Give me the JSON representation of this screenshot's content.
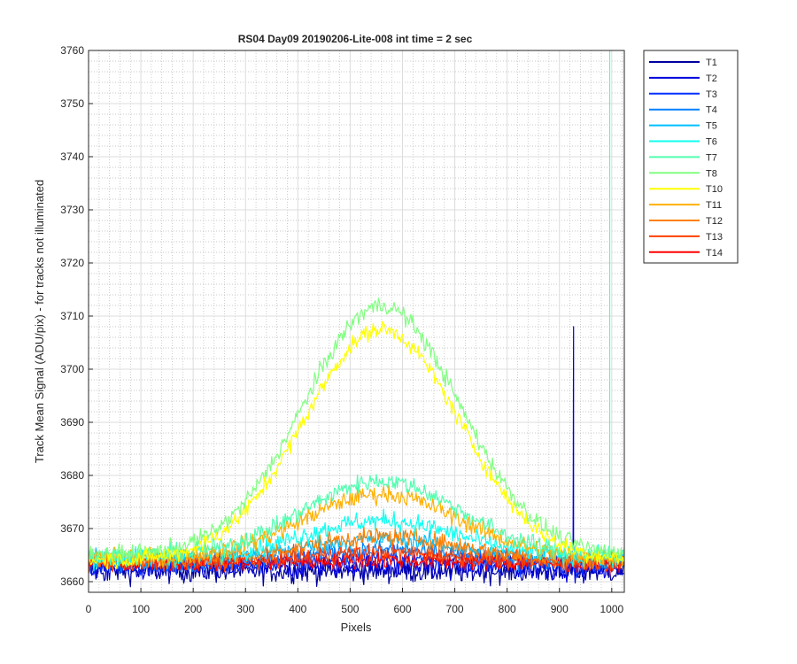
{
  "chart_data": {
    "type": "line",
    "title": "RS04 Day09 20190206-Lite-008 int time = 2 sec",
    "xlabel": "Pixels",
    "ylabel": "Track Mean Signal (ADU/pix) - for tracks not illuminated",
    "xlim": [
      0,
      1024
    ],
    "ylim": [
      3658,
      3760
    ],
    "xticks": [
      0,
      100,
      200,
      300,
      400,
      500,
      600,
      700,
      800,
      900,
      1000
    ],
    "yticks": [
      3660,
      3670,
      3680,
      3690,
      3700,
      3710,
      3720,
      3730,
      3740,
      3750,
      3760
    ],
    "grid": true,
    "minor_grid": true,
    "legend_position": "outside-top-right",
    "series": [
      {
        "name": "T1",
        "color": "#00009f",
        "base": 3662.0,
        "peak": 0.0,
        "noise": 1.6
      },
      {
        "name": "T2",
        "color": "#0000df",
        "base": 3662.5,
        "peak": 0.5,
        "noise": 1.6,
        "spike": {
          "x": 927,
          "y": 3708
        }
      },
      {
        "name": "T3",
        "color": "#0030ff",
        "base": 3663.0,
        "peak": 1.5,
        "noise": 1.3
      },
      {
        "name": "T4",
        "color": "#0080ff",
        "base": 3663.5,
        "peak": 2.5,
        "noise": 1.2
      },
      {
        "name": "T5",
        "color": "#00c0ff",
        "base": 3664.0,
        "peak": 4.0,
        "noise": 1.2
      },
      {
        "name": "T6",
        "color": "#10ffef",
        "base": 3664.5,
        "peak": 7.0,
        "noise": 1.3
      },
      {
        "name": "T7",
        "color": "#50ffaf",
        "base": 3665.0,
        "peak": 14.0,
        "noise": 1.2,
        "spike": {
          "x": 996,
          "y": 3760
        }
      },
      {
        "name": "T8",
        "color": "#80ff80",
        "base": 3665.0,
        "peak": 47.0,
        "noise": 1.2
      },
      {
        "name": "T10",
        "color": "#ffff00",
        "base": 3664.0,
        "peak": 43.5,
        "noise": 1.1
      },
      {
        "name": "T11",
        "color": "#ffb000",
        "base": 3664.5,
        "peak": 12.0,
        "noise": 1.2
      },
      {
        "name": "T12",
        "color": "#ff8000",
        "base": 3664.0,
        "peak": 4.5,
        "noise": 1.2
      },
      {
        "name": "T13",
        "color": "#ff4000",
        "base": 3663.5,
        "peak": 2.0,
        "noise": 1.2
      },
      {
        "name": "T14",
        "color": "#ff0000",
        "base": 3663.5,
        "peak": 0.5,
        "noise": 1.2
      }
    ],
    "curve_center": 560,
    "curve_width": 210
  }
}
